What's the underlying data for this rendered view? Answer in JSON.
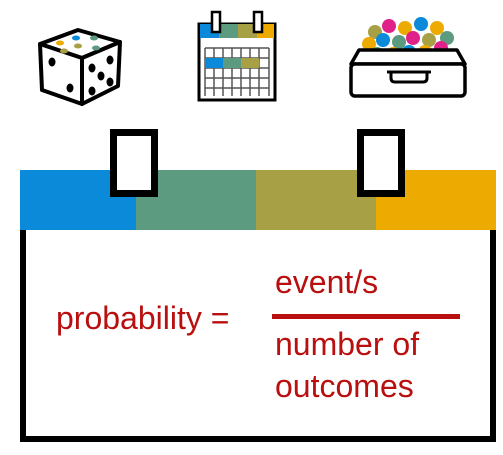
{
  "icons": [
    {
      "name": "dice-icon"
    },
    {
      "name": "calendar-icon"
    },
    {
      "name": "box-of-balls-icon"
    }
  ],
  "colors": {
    "blue": "#0a8ad8",
    "teal": "#5c9b7f",
    "olive": "#a8a044",
    "gold": "#edaa00",
    "formula": "#b90f0f",
    "outline": "#000000"
  },
  "formula": {
    "lhs": "probability =",
    "numerator": "event/s",
    "denominator_line1": "number of",
    "denominator_line2": "outcomes"
  }
}
